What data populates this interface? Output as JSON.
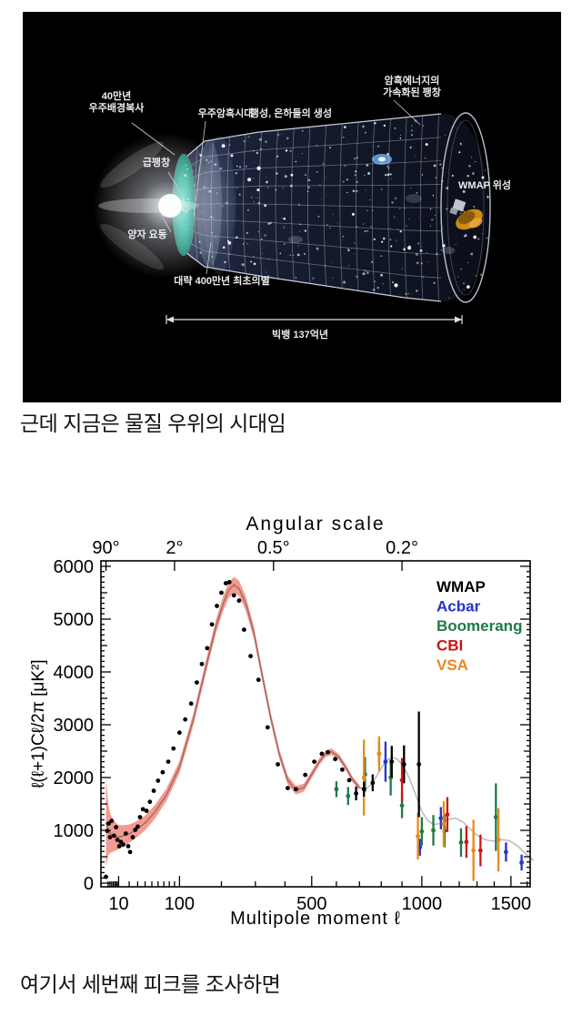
{
  "page": {
    "background": "#ffffff"
  },
  "captions": {
    "c1": "근데 지금은 물질 우위의 시대임",
    "c2": "여기서 세번째 피크를 조사하면"
  },
  "diagram": {
    "background": "#000000",
    "labels": [
      {
        "id": "cmb400k",
        "lines": [
          "40만년",
          "우주배경복사"
        ]
      },
      {
        "id": "darkages",
        "lines": [
          "우주암흑시대"
        ]
      },
      {
        "id": "formation",
        "lines": [
          "행성, 은하들의 생성"
        ]
      },
      {
        "id": "darkenergy",
        "lines": [
          "암흑에너지의",
          "가속화된 팽창"
        ]
      },
      {
        "id": "inflation",
        "lines": [
          "급팽창"
        ]
      },
      {
        "id": "quantum",
        "lines": [
          "양자 요동"
        ]
      },
      {
        "id": "firststars",
        "lines": [
          "대략 400만년 최초의별"
        ]
      },
      {
        "id": "wmapsat",
        "lines": [
          "WMAP 위성"
        ]
      },
      {
        "id": "bigbang",
        "lines": [
          "빅뱅 137억년"
        ]
      }
    ]
  },
  "chart_data": {
    "type": "line+scatter",
    "top_axis": {
      "label": "Angular scale",
      "ticks": [
        {
          "label": "90°",
          "l": 2
        },
        {
          "label": "2°",
          "l": 90
        },
        {
          "label": "0.5°",
          "l": 360
        },
        {
          "label": "0.2°",
          "l": 900
        }
      ]
    },
    "xlabel": "Multipole moment ℓ",
    "ylabel": "ℓ(ℓ+1)Cℓ/2π [μK²]",
    "x_ticks": [
      10,
      100,
      500,
      1000,
      1500
    ],
    "y_ticks": [
      0,
      1000,
      2000,
      3000,
      4000,
      5000,
      6000
    ],
    "xlim": [
      2,
      1650
    ],
    "ylim": [
      0,
      6000
    ],
    "x_scale": "l^0.6 (log-like low-l, compressed linear high-l)",
    "grid": false,
    "legend_position": "top-right",
    "colors": {
      "band": "#f29b92",
      "curve_low": "#a2685e",
      "curve_high": "#b6b6bd",
      "axis": "#000000"
    },
    "legend": [
      {
        "name": "WMAP",
        "color": "#000000"
      },
      {
        "name": "Acbar",
        "color": "#2233cc"
      },
      {
        "name": "Boomerang",
        "color": "#1e7a45"
      },
      {
        "name": "CBI",
        "color": "#cc1414"
      },
      {
        "name": "VSA",
        "color": "#e8891c"
      }
    ],
    "model_curve": [
      [
        2,
        1150,
        850
      ],
      [
        3,
        1020,
        500
      ],
      [
        4,
        950,
        380
      ],
      [
        6,
        900,
        300
      ],
      [
        8,
        880,
        260
      ],
      [
        10,
        875,
        230
      ],
      [
        14,
        895,
        200
      ],
      [
        20,
        935,
        175
      ],
      [
        28,
        1010,
        155
      ],
      [
        40,
        1140,
        140
      ],
      [
        55,
        1350,
        130
      ],
      [
        75,
        1680,
        120
      ],
      [
        100,
        2200,
        115
      ],
      [
        130,
        3100,
        115
      ],
      [
        160,
        4100,
        120
      ],
      [
        185,
        4850,
        130
      ],
      [
        205,
        5300,
        140
      ],
      [
        220,
        5550,
        150
      ],
      [
        235,
        5650,
        150
      ],
      [
        250,
        5580,
        145
      ],
      [
        270,
        5300,
        135
      ],
      [
        295,
        4750,
        120
      ],
      [
        320,
        4000,
        110
      ],
      [
        350,
        3150,
        100
      ],
      [
        380,
        2450,
        90
      ],
      [
        410,
        1950,
        85
      ],
      [
        440,
        1760,
        80
      ],
      [
        470,
        1810,
        75
      ],
      [
        500,
        2060,
        70
      ],
      [
        530,
        2300,
        65
      ],
      [
        555,
        2450,
        62
      ],
      [
        580,
        2490,
        60
      ],
      [
        610,
        2390,
        58
      ],
      [
        640,
        2190,
        55
      ],
      [
        670,
        1960,
        52
      ],
      [
        700,
        1810,
        50
      ],
      [
        730,
        1780,
        0
      ],
      [
        760,
        1900,
        0
      ],
      [
        790,
        2110,
        0
      ],
      [
        820,
        2310,
        0
      ],
      [
        850,
        2390,
        0
      ],
      [
        880,
        2340,
        0
      ],
      [
        910,
        2190,
        0
      ],
      [
        940,
        1960,
        0
      ],
      [
        970,
        1660,
        0
      ],
      [
        1000,
        1360,
        0
      ],
      [
        1030,
        1190,
        0
      ],
      [
        1060,
        1110,
        0
      ],
      [
        1100,
        1130,
        0
      ],
      [
        1140,
        1210,
        0
      ],
      [
        1180,
        1230,
        0
      ],
      [
        1220,
        1160,
        0
      ],
      [
        1260,
        1030,
        0
      ],
      [
        1300,
        910,
        0
      ],
      [
        1340,
        830,
        0
      ],
      [
        1390,
        795,
        0
      ],
      [
        1440,
        825,
        0
      ],
      [
        1490,
        805,
        0
      ],
      [
        1540,
        705,
        0
      ],
      [
        1590,
        555,
        0
      ],
      [
        1640,
        430,
        0
      ]
    ],
    "series": [
      {
        "name": "Acbar",
        "color": "#2233cc",
        "points": [
          [
            820,
            2300,
            380
          ],
          [
            990,
            680,
            160
          ],
          [
            1100,
            1230,
            210
          ],
          [
            1470,
            590,
            180
          ],
          [
            1565,
            390,
            150
          ]
        ]
      },
      {
        "name": "Boomerang",
        "color": "#1e7a45",
        "points": [
          [
            600,
            1780,
            150
          ],
          [
            650,
            1650,
            170
          ],
          [
            725,
            2060,
            330
          ],
          [
            790,
            2450,
            220
          ],
          [
            845,
            2000,
            340
          ],
          [
            900,
            1470,
            240
          ],
          [
            1000,
            980,
            270
          ],
          [
            1060,
            1000,
            290
          ],
          [
            1120,
            990,
            310
          ],
          [
            1210,
            770,
            270
          ],
          [
            1410,
            1250,
            640
          ]
        ]
      },
      {
        "name": "CBI",
        "color": "#cc1414",
        "points": [
          [
            900,
            1950,
            420
          ],
          [
            1135,
            1300,
            330
          ],
          [
            1240,
            780,
            300
          ],
          [
            1320,
            620,
            300
          ]
        ]
      },
      {
        "name": "VSA",
        "color": "#e8891c",
        "points": [
          [
            720,
            2000,
            720
          ],
          [
            790,
            2450,
            330
          ],
          [
            980,
            890,
            440
          ],
          [
            1115,
            1120,
            430
          ],
          [
            1280,
            620,
            580
          ],
          [
            1425,
            820,
            600
          ]
        ]
      },
      {
        "name": "WMAP",
        "color": "#000000",
        "points": [
          [
            2,
            120,
            0
          ],
          [
            2.6,
            990,
            0
          ],
          [
            3.3,
            1130,
            0
          ],
          [
            4,
            870,
            0
          ],
          [
            5,
            1180,
            0
          ],
          [
            6.5,
            900,
            0
          ],
          [
            8,
            1060,
            0
          ],
          [
            9,
            820,
            0
          ],
          [
            10.5,
            700,
            0
          ],
          [
            12,
            780,
            0
          ],
          [
            14,
            730,
            0
          ],
          [
            16.5,
            940,
            0
          ],
          [
            19,
            700,
            0
          ],
          [
            21,
            590,
            0
          ],
          [
            24,
            870,
            0
          ],
          [
            27,
            1010,
            0
          ],
          [
            30,
            1070,
            0
          ],
          [
            33,
            1250,
            0
          ],
          [
            37,
            1400,
            0
          ],
          [
            42,
            1370,
            0
          ],
          [
            47,
            1540,
            0
          ],
          [
            53,
            1750,
            0
          ],
          [
            60,
            1940,
            0
          ],
          [
            68,
            2100,
            0
          ],
          [
            78,
            2300,
            0
          ],
          [
            88,
            2550,
            0
          ],
          [
            100,
            2850,
            0
          ],
          [
            112,
            3100,
            0
          ],
          [
            125,
            3400,
            0
          ],
          [
            138,
            3800,
            0
          ],
          [
            150,
            4150,
            0
          ],
          [
            163,
            4450,
            0
          ],
          [
            175,
            4900,
            0
          ],
          [
            188,
            5250,
            0
          ],
          [
            200,
            5500,
            0
          ],
          [
            212,
            5680,
            0
          ],
          [
            222,
            5700,
            0
          ],
          [
            235,
            5450,
            0
          ],
          [
            250,
            5350,
            0
          ],
          [
            265,
            4800,
            0
          ],
          [
            285,
            4300,
            0
          ],
          [
            310,
            3850,
            0
          ],
          [
            340,
            2950,
            0
          ],
          [
            375,
            2250,
            0
          ],
          [
            410,
            1800,
            0
          ],
          [
            440,
            1780,
            0
          ],
          [
            475,
            2050,
            0
          ],
          [
            510,
            2300,
            0
          ],
          [
            540,
            2450,
            0
          ],
          [
            565,
            2480,
            0
          ],
          [
            595,
            2350,
            0
          ],
          [
            625,
            2150,
            0
          ],
          [
            655,
            1950,
            0
          ],
          [
            685,
            1700,
            130
          ],
          [
            720,
            1780,
            140
          ],
          [
            760,
            1900,
            160
          ],
          [
            850,
            2300,
            300
          ],
          [
            910,
            2250,
            360
          ],
          [
            985,
            2250,
            1000
          ]
        ]
      }
    ]
  }
}
